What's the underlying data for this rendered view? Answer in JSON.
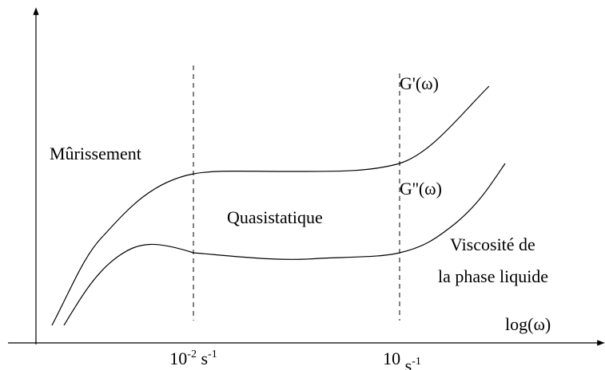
{
  "labels": {
    "ripening": "Mûrissement",
    "quasistatic": "Quasistatique",
    "storage_modulus": "G'(ω)",
    "loss_modulus": "G''(ω)",
    "viscosity_line1": "Viscosité de",
    "viscosity_line2": "la phase liquide",
    "x_axis": "log(ω)"
  },
  "x_ticks": [
    {
      "base": "10",
      "exp": "-2",
      "unit": " s",
      "unit_exp": "-1"
    },
    {
      "base": "10",
      "exp": "",
      "unit": " s",
      "unit_exp": "-1"
    }
  ]
}
